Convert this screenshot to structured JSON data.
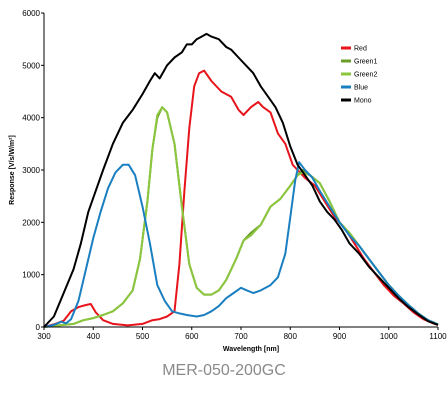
{
  "caption": "MER-050-200GC",
  "chart_data": {
    "type": "line",
    "title": "",
    "xlabel": "Wavelength [nm]",
    "ylabel": "Response [V/s/W/m²]",
    "xlim": [
      300,
      1100
    ],
    "ylim": [
      0,
      6000
    ],
    "xticks": [
      300,
      400,
      500,
      600,
      700,
      800,
      900,
      1000,
      1100
    ],
    "yticks": [
      0,
      1000,
      2000,
      3000,
      4000,
      5000,
      6000
    ],
    "grid": false,
    "legend": "top-right",
    "series": [
      {
        "name": "Red",
        "color": "#e8141b",
        "points": [
          [
            300,
            0
          ],
          [
            320,
            50
          ],
          [
            340,
            120
          ],
          [
            355,
            300
          ],
          [
            370,
            380
          ],
          [
            385,
            420
          ],
          [
            395,
            440
          ],
          [
            405,
            280
          ],
          [
            420,
            130
          ],
          [
            440,
            60
          ],
          [
            470,
            30
          ],
          [
            500,
            60
          ],
          [
            520,
            130
          ],
          [
            535,
            150
          ],
          [
            550,
            200
          ],
          [
            565,
            300
          ],
          [
            575,
            1200
          ],
          [
            585,
            2600
          ],
          [
            595,
            3800
          ],
          [
            605,
            4600
          ],
          [
            615,
            4850
          ],
          [
            625,
            4900
          ],
          [
            640,
            4700
          ],
          [
            660,
            4500
          ],
          [
            680,
            4400
          ],
          [
            695,
            4150
          ],
          [
            705,
            4050
          ],
          [
            720,
            4200
          ],
          [
            735,
            4300
          ],
          [
            745,
            4200
          ],
          [
            760,
            4100
          ],
          [
            775,
            3700
          ],
          [
            790,
            3500
          ],
          [
            805,
            3100
          ],
          [
            815,
            3000
          ],
          [
            830,
            2850
          ],
          [
            850,
            2700
          ],
          [
            870,
            2400
          ],
          [
            890,
            2100
          ],
          [
            910,
            1900
          ],
          [
            930,
            1600
          ],
          [
            950,
            1300
          ],
          [
            970,
            1050
          ],
          [
            990,
            800
          ],
          [
            1010,
            600
          ],
          [
            1030,
            450
          ],
          [
            1050,
            280
          ],
          [
            1070,
            150
          ],
          [
            1090,
            70
          ],
          [
            1100,
            40
          ]
        ]
      },
      {
        "name": "Green1",
        "color": "#6a9e2a",
        "points": [
          [
            300,
            0
          ],
          [
            330,
            30
          ],
          [
            360,
            60
          ],
          [
            380,
            130
          ],
          [
            400,
            170
          ],
          [
            420,
            230
          ],
          [
            440,
            300
          ],
          [
            460,
            450
          ],
          [
            480,
            700
          ],
          [
            495,
            1300
          ],
          [
            510,
            2400
          ],
          [
            520,
            3400
          ],
          [
            530,
            4000
          ],
          [
            540,
            4200
          ],
          [
            550,
            4100
          ],
          [
            565,
            3500
          ],
          [
            580,
            2300
          ],
          [
            595,
            1200
          ],
          [
            610,
            750
          ],
          [
            625,
            620
          ],
          [
            640,
            620
          ],
          [
            655,
            700
          ],
          [
            670,
            900
          ],
          [
            690,
            1300
          ],
          [
            705,
            1650
          ],
          [
            720,
            1800
          ],
          [
            740,
            1950
          ],
          [
            760,
            2300
          ],
          [
            780,
            2450
          ],
          [
            800,
            2700
          ],
          [
            815,
            2900
          ],
          [
            825,
            3000
          ],
          [
            840,
            2900
          ],
          [
            860,
            2750
          ],
          [
            880,
            2400
          ],
          [
            900,
            2000
          ],
          [
            920,
            1800
          ],
          [
            940,
            1550
          ],
          [
            960,
            1300
          ],
          [
            980,
            1050
          ],
          [
            1000,
            800
          ],
          [
            1020,
            600
          ],
          [
            1040,
            420
          ],
          [
            1060,
            260
          ],
          [
            1080,
            130
          ],
          [
            1100,
            50
          ]
        ]
      },
      {
        "name": "Green2",
        "color": "#8cc63f",
        "points": [
          [
            300,
            0
          ],
          [
            330,
            30
          ],
          [
            360,
            60
          ],
          [
            380,
            130
          ],
          [
            400,
            170
          ],
          [
            420,
            230
          ],
          [
            440,
            300
          ],
          [
            460,
            450
          ],
          [
            480,
            700
          ],
          [
            495,
            1300
          ],
          [
            510,
            2400
          ],
          [
            520,
            3400
          ],
          [
            530,
            4050
          ],
          [
            540,
            4200
          ],
          [
            550,
            4100
          ],
          [
            565,
            3500
          ],
          [
            580,
            2300
          ],
          [
            595,
            1200
          ],
          [
            610,
            750
          ],
          [
            625,
            620
          ],
          [
            640,
            620
          ],
          [
            655,
            700
          ],
          [
            670,
            900
          ],
          [
            690,
            1300
          ],
          [
            705,
            1650
          ],
          [
            720,
            1750
          ],
          [
            740,
            1950
          ],
          [
            760,
            2300
          ],
          [
            780,
            2450
          ],
          [
            800,
            2700
          ],
          [
            815,
            2900
          ],
          [
            825,
            2950
          ],
          [
            840,
            2900
          ],
          [
            860,
            2750
          ],
          [
            880,
            2400
          ],
          [
            900,
            2000
          ],
          [
            920,
            1800
          ],
          [
            940,
            1550
          ],
          [
            960,
            1300
          ],
          [
            980,
            1050
          ],
          [
            1000,
            800
          ],
          [
            1020,
            600
          ],
          [
            1040,
            420
          ],
          [
            1060,
            260
          ],
          [
            1080,
            130
          ],
          [
            1100,
            50
          ]
        ]
      },
      {
        "name": "Blue",
        "color": "#1a7fc1",
        "points": [
          [
            300,
            0
          ],
          [
            320,
            40
          ],
          [
            335,
            100
          ],
          [
            345,
            70
          ],
          [
            355,
            150
          ],
          [
            370,
            500
          ],
          [
            385,
            1100
          ],
          [
            400,
            1700
          ],
          [
            415,
            2200
          ],
          [
            430,
            2650
          ],
          [
            445,
            2950
          ],
          [
            460,
            3100
          ],
          [
            472,
            3100
          ],
          [
            485,
            2900
          ],
          [
            500,
            2300
          ],
          [
            515,
            1600
          ],
          [
            530,
            800
          ],
          [
            545,
            500
          ],
          [
            560,
            300
          ],
          [
            575,
            260
          ],
          [
            590,
            230
          ],
          [
            610,
            200
          ],
          [
            625,
            230
          ],
          [
            640,
            300
          ],
          [
            655,
            400
          ],
          [
            670,
            550
          ],
          [
            685,
            650
          ],
          [
            700,
            750
          ],
          [
            712,
            700
          ],
          [
            725,
            650
          ],
          [
            740,
            700
          ],
          [
            760,
            800
          ],
          [
            775,
            950
          ],
          [
            790,
            1400
          ],
          [
            800,
            2100
          ],
          [
            810,
            2800
          ],
          [
            818,
            3150
          ],
          [
            830,
            3000
          ],
          [
            845,
            2850
          ],
          [
            860,
            2600
          ],
          [
            880,
            2300
          ],
          [
            900,
            2000
          ],
          [
            920,
            1750
          ],
          [
            940,
            1550
          ],
          [
            960,
            1300
          ],
          [
            980,
            1050
          ],
          [
            1000,
            800
          ],
          [
            1020,
            600
          ],
          [
            1040,
            420
          ],
          [
            1060,
            260
          ],
          [
            1080,
            130
          ],
          [
            1100,
            50
          ]
        ]
      },
      {
        "name": "Mono",
        "color": "#000000",
        "points": [
          [
            300,
            0
          ],
          [
            320,
            200
          ],
          [
            340,
            650
          ],
          [
            360,
            1100
          ],
          [
            375,
            1600
          ],
          [
            390,
            2200
          ],
          [
            405,
            2600
          ],
          [
            420,
            3000
          ],
          [
            440,
            3500
          ],
          [
            460,
            3900
          ],
          [
            480,
            4150
          ],
          [
            500,
            4450
          ],
          [
            515,
            4700
          ],
          [
            525,
            4850
          ],
          [
            535,
            4750
          ],
          [
            550,
            5000
          ],
          [
            565,
            5150
          ],
          [
            580,
            5250
          ],
          [
            590,
            5400
          ],
          [
            600,
            5400
          ],
          [
            610,
            5500
          ],
          [
            620,
            5550
          ],
          [
            630,
            5600
          ],
          [
            640,
            5550
          ],
          [
            655,
            5500
          ],
          [
            670,
            5350
          ],
          [
            680,
            5300
          ],
          [
            695,
            5150
          ],
          [
            710,
            5000
          ],
          [
            725,
            4850
          ],
          [
            740,
            4600
          ],
          [
            755,
            4400
          ],
          [
            770,
            4200
          ],
          [
            785,
            3900
          ],
          [
            800,
            3450
          ],
          [
            815,
            3100
          ],
          [
            830,
            2900
          ],
          [
            845,
            2700
          ],
          [
            860,
            2400
          ],
          [
            875,
            2200
          ],
          [
            890,
            2050
          ],
          [
            905,
            1850
          ],
          [
            920,
            1600
          ],
          [
            940,
            1400
          ],
          [
            960,
            1150
          ],
          [
            980,
            950
          ],
          [
            1000,
            750
          ],
          [
            1020,
            550
          ],
          [
            1040,
            380
          ],
          [
            1060,
            240
          ],
          [
            1080,
            110
          ],
          [
            1100,
            40
          ]
        ]
      }
    ]
  }
}
